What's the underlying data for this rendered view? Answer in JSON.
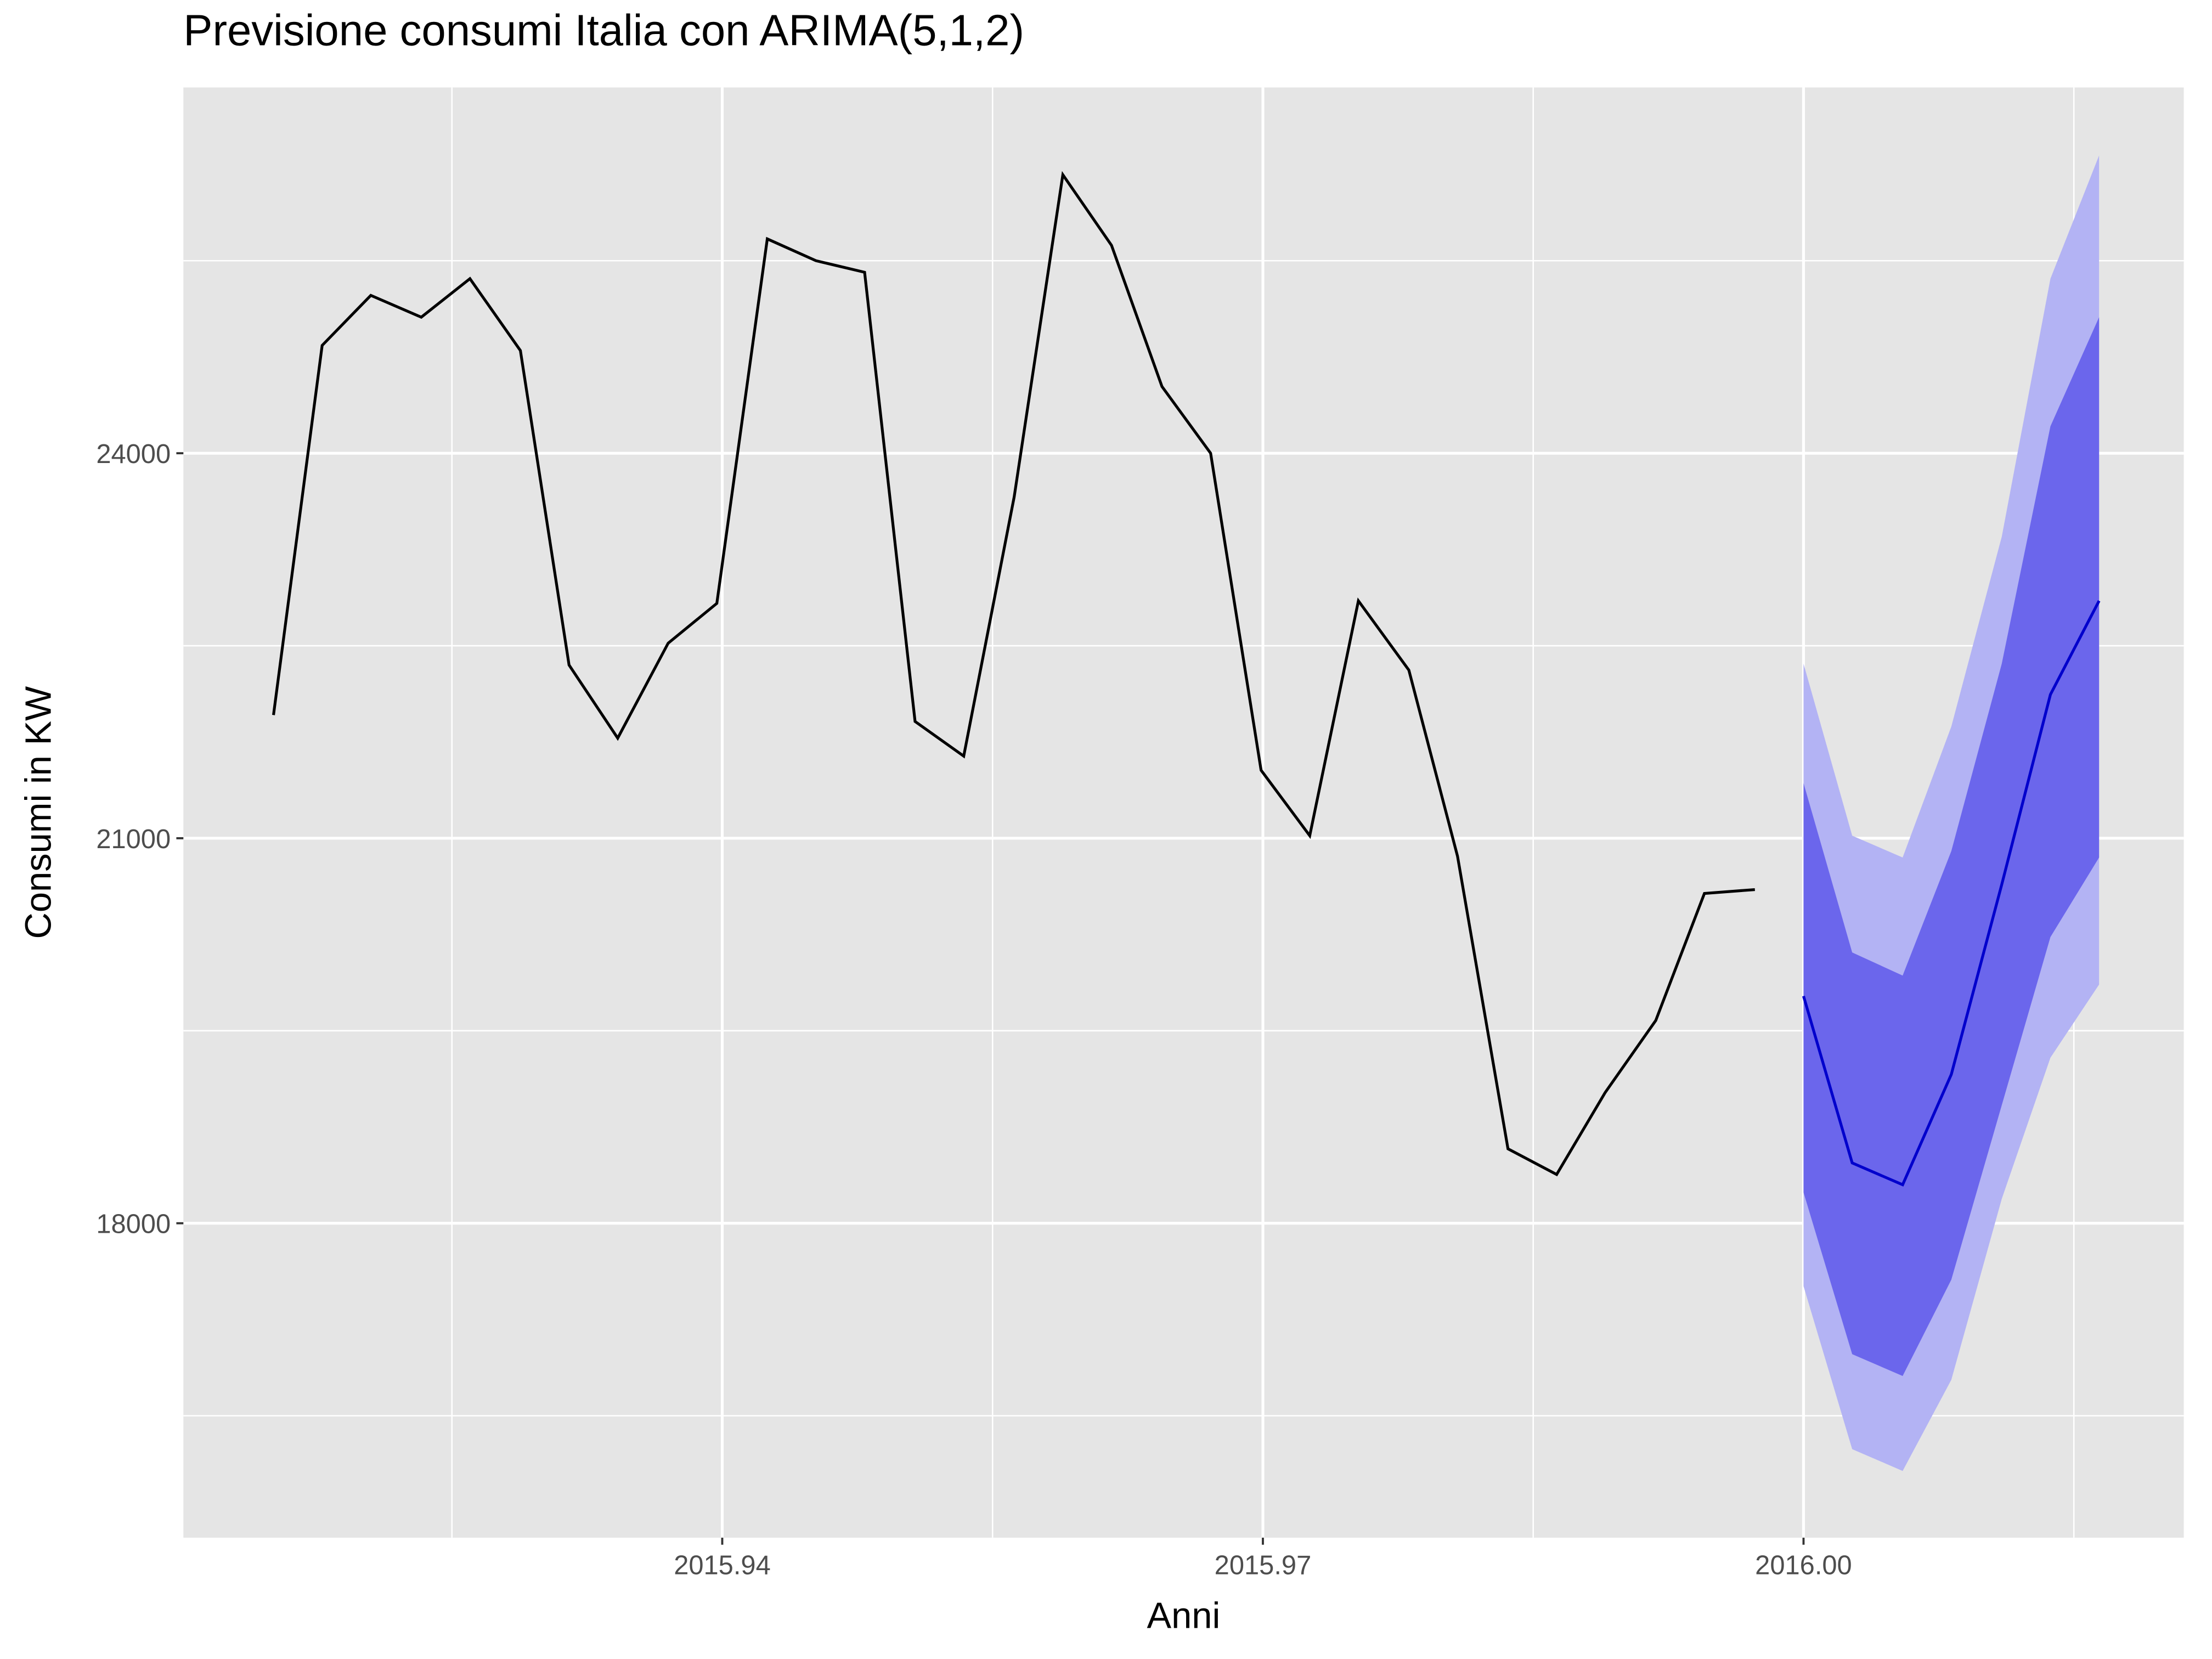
{
  "chart_data": {
    "type": "line",
    "title": "Previsione consumi Italia con ARIMA(5,1,2)",
    "x_label": "Anni",
    "y_label": "Consumi in KW",
    "history": {
      "color": "#000000",
      "x": [
        2015.9151,
        2015.9178,
        2015.9205,
        2015.9233,
        2015.926,
        2015.9288,
        2015.9315,
        2015.9342,
        2015.937,
        2015.9397,
        2015.9425,
        2015.9452,
        2015.9479,
        2015.9507,
        2015.9534,
        2015.9562,
        2015.9589,
        2015.9616,
        2015.9644,
        2015.9671,
        2015.9699,
        2015.9726,
        2015.9753,
        2015.9781,
        2015.9808,
        2015.9836,
        2015.9863,
        2015.989,
        2015.9918,
        2015.9945,
        2015.9973
      ],
      "values": [
        21960,
        24840,
        25230,
        25060,
        25360,
        24800,
        22350,
        21780,
        22520,
        22830,
        25670,
        25500,
        25410,
        21910,
        21640,
        23660,
        26170,
        25620,
        24520,
        24000,
        21530,
        21020,
        22850,
        22310,
        20860,
        18580,
        18380,
        19020,
        19580,
        20570,
        20600
      ]
    },
    "forecast": {
      "color": "#0000cc",
      "x": [
        2016.0,
        2016.0027,
        2016.0055,
        2016.0082,
        2016.011,
        2016.0137,
        2016.0164
      ],
      "values": [
        19770,
        18470,
        18300,
        19160,
        20640,
        22120,
        22850
      ],
      "intervals": [
        {
          "color": "#b3b3f4",
          "lower": [
            17510,
            16240,
            16070,
            16780,
            18190,
            19290,
            19860
          ],
          "upper": [
            22360,
            21020,
            20850,
            21870,
            23350,
            25360,
            26320
          ]
        },
        {
          "color": "#6b66ec",
          "lower": [
            18240,
            16980,
            16810,
            17560,
            18920,
            20230,
            20850
          ],
          "upper": [
            21430,
            20110,
            19930,
            20900,
            22360,
            24210,
            25060
          ]
        }
      ]
    },
    "xlim": [
      2015.9101,
      2016.0211
    ],
    "ylim": [
      15550,
      26850
    ],
    "xticks": [
      {
        "value": 2015.94,
        "label": "2015.94"
      },
      {
        "value": 2015.97,
        "label": "2015.97"
      },
      {
        "value": 2016.0,
        "label": "2016.00"
      }
    ],
    "yticks": [
      18000,
      21000,
      24000
    ],
    "xminorticks": [
      2015.925,
      2015.955,
      2015.985,
      2016.015
    ],
    "yminorticks": [
      16500,
      19500,
      22500,
      25500
    ],
    "grid": true,
    "panel_color": "#e5e5e5"
  }
}
